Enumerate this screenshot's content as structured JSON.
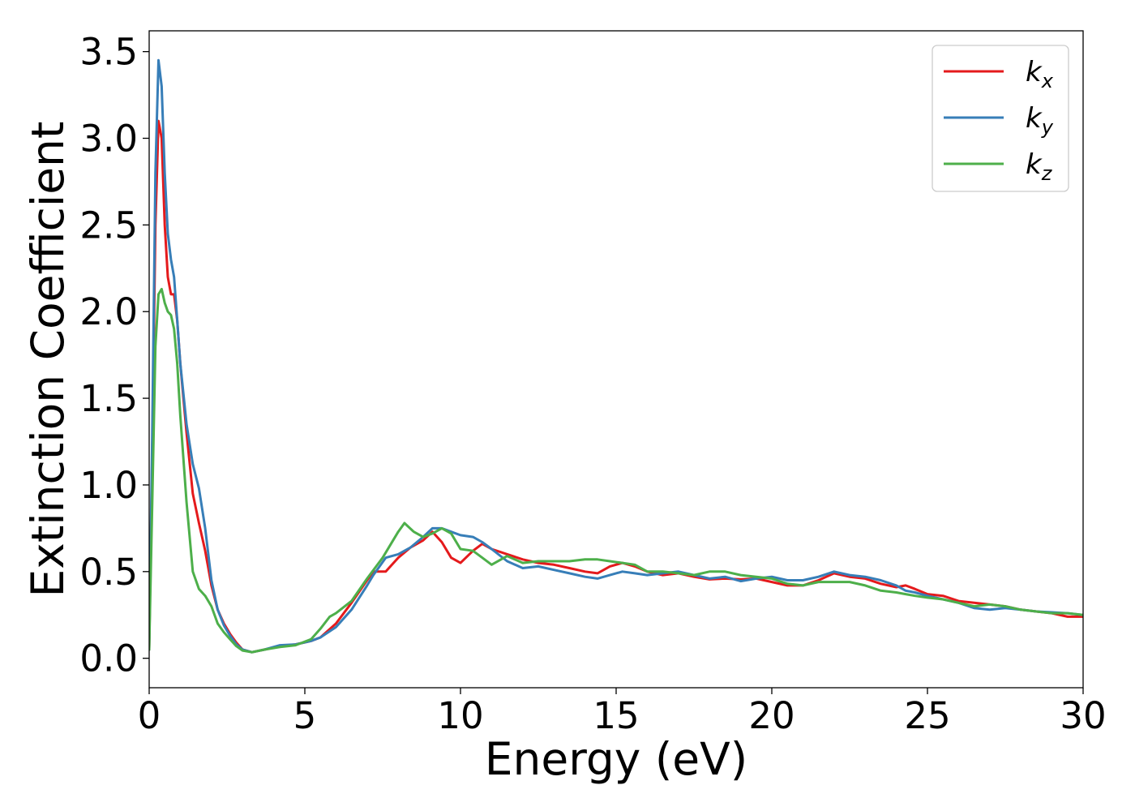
{
  "chart_data": {
    "type": "line",
    "title": "",
    "xlabel": "Energy (eV)",
    "ylabel": "Extinction Coefficient",
    "xlim": [
      0,
      30
    ],
    "ylim": [
      -0.17,
      3.62
    ],
    "xticks": [
      0,
      5,
      10,
      15,
      20,
      25,
      30
    ],
    "xtick_labels": [
      "0",
      "5",
      "10",
      "15",
      "20",
      "25",
      "30"
    ],
    "yticks": [
      0.0,
      0.5,
      1.0,
      1.5,
      2.0,
      2.5,
      3.0,
      3.5
    ],
    "ytick_labels": [
      "0.0",
      "0.5",
      "1.0",
      "1.5",
      "2.0",
      "2.5",
      "3.0",
      "3.5"
    ],
    "grid": false,
    "legend_position": "top-right",
    "series": [
      {
        "name": "k_x",
        "label_main": "k",
        "label_sub": "x",
        "color": "#e41a1c",
        "points": [
          [
            0,
            0.05
          ],
          [
            0.1,
            1.2
          ],
          [
            0.2,
            2.5
          ],
          [
            0.3,
            3.1
          ],
          [
            0.4,
            3.0
          ],
          [
            0.5,
            2.5
          ],
          [
            0.6,
            2.2
          ],
          [
            0.7,
            2.1
          ],
          [
            0.8,
            2.1
          ],
          [
            0.9,
            1.95
          ],
          [
            1.0,
            1.7
          ],
          [
            1.2,
            1.3
          ],
          [
            1.4,
            0.95
          ],
          [
            1.6,
            0.78
          ],
          [
            1.8,
            0.62
          ],
          [
            2.0,
            0.42
          ],
          [
            2.2,
            0.28
          ],
          [
            2.4,
            0.2
          ],
          [
            2.6,
            0.14
          ],
          [
            2.8,
            0.09
          ],
          [
            3.0,
            0.05
          ],
          [
            3.3,
            0.035
          ],
          [
            3.7,
            0.05
          ],
          [
            4.2,
            0.07
          ],
          [
            4.7,
            0.08
          ],
          [
            5.2,
            0.1
          ],
          [
            5.5,
            0.12
          ],
          [
            6.0,
            0.2
          ],
          [
            6.5,
            0.32
          ],
          [
            7.0,
            0.45
          ],
          [
            7.2,
            0.5
          ],
          [
            7.6,
            0.5
          ],
          [
            8.0,
            0.58
          ],
          [
            8.4,
            0.64
          ],
          [
            8.8,
            0.68
          ],
          [
            9.1,
            0.73
          ],
          [
            9.4,
            0.67
          ],
          [
            9.7,
            0.58
          ],
          [
            10.0,
            0.55
          ],
          [
            10.4,
            0.62
          ],
          [
            10.7,
            0.66
          ],
          [
            11.0,
            0.63
          ],
          [
            11.5,
            0.6
          ],
          [
            12.0,
            0.57
          ],
          [
            12.5,
            0.55
          ],
          [
            13.0,
            0.54
          ],
          [
            13.5,
            0.52
          ],
          [
            14.0,
            0.5
          ],
          [
            14.4,
            0.49
          ],
          [
            14.8,
            0.53
          ],
          [
            15.2,
            0.55
          ],
          [
            15.6,
            0.53
          ],
          [
            16.0,
            0.5
          ],
          [
            16.5,
            0.48
          ],
          [
            17.0,
            0.49
          ],
          [
            17.5,
            0.47
          ],
          [
            18.0,
            0.455
          ],
          [
            18.5,
            0.46
          ],
          [
            19.0,
            0.455
          ],
          [
            19.5,
            0.46
          ],
          [
            20.0,
            0.44
          ],
          [
            20.5,
            0.42
          ],
          [
            21.0,
            0.42
          ],
          [
            21.5,
            0.45
          ],
          [
            22.0,
            0.49
          ],
          [
            22.5,
            0.47
          ],
          [
            23.0,
            0.46
          ],
          [
            23.5,
            0.43
          ],
          [
            24.0,
            0.41
          ],
          [
            24.3,
            0.42
          ],
          [
            24.6,
            0.4
          ],
          [
            25.0,
            0.37
          ],
          [
            25.5,
            0.36
          ],
          [
            26.0,
            0.33
          ],
          [
            26.5,
            0.32
          ],
          [
            27.0,
            0.31
          ],
          [
            27.5,
            0.3
          ],
          [
            28.0,
            0.28
          ],
          [
            28.5,
            0.27
          ],
          [
            29.0,
            0.26
          ],
          [
            29.5,
            0.24
          ],
          [
            30.0,
            0.24
          ]
        ]
      },
      {
        "name": "k_y",
        "label_main": "k",
        "label_sub": "y",
        "color": "#377eb8",
        "points": [
          [
            0,
            0.05
          ],
          [
            0.1,
            1.3
          ],
          [
            0.2,
            2.8
          ],
          [
            0.3,
            3.45
          ],
          [
            0.4,
            3.3
          ],
          [
            0.5,
            2.8
          ],
          [
            0.6,
            2.45
          ],
          [
            0.7,
            2.3
          ],
          [
            0.8,
            2.2
          ],
          [
            0.9,
            1.95
          ],
          [
            1.0,
            1.7
          ],
          [
            1.2,
            1.35
          ],
          [
            1.4,
            1.12
          ],
          [
            1.6,
            0.98
          ],
          [
            1.8,
            0.75
          ],
          [
            2.0,
            0.45
          ],
          [
            2.2,
            0.28
          ],
          [
            2.4,
            0.19
          ],
          [
            2.6,
            0.13
          ],
          [
            2.8,
            0.08
          ],
          [
            3.0,
            0.05
          ],
          [
            3.3,
            0.035
          ],
          [
            3.7,
            0.05
          ],
          [
            4.2,
            0.075
          ],
          [
            4.7,
            0.08
          ],
          [
            5.2,
            0.1
          ],
          [
            5.5,
            0.12
          ],
          [
            6.0,
            0.18
          ],
          [
            6.5,
            0.28
          ],
          [
            7.0,
            0.42
          ],
          [
            7.2,
            0.48
          ],
          [
            7.6,
            0.58
          ],
          [
            8.0,
            0.6
          ],
          [
            8.4,
            0.64
          ],
          [
            8.8,
            0.7
          ],
          [
            9.1,
            0.75
          ],
          [
            9.4,
            0.75
          ],
          [
            9.7,
            0.73
          ],
          [
            10.0,
            0.71
          ],
          [
            10.4,
            0.7
          ],
          [
            10.7,
            0.67
          ],
          [
            11.0,
            0.63
          ],
          [
            11.5,
            0.56
          ],
          [
            12.0,
            0.52
          ],
          [
            12.5,
            0.53
          ],
          [
            13.0,
            0.51
          ],
          [
            13.5,
            0.49
          ],
          [
            14.0,
            0.47
          ],
          [
            14.4,
            0.46
          ],
          [
            14.8,
            0.48
          ],
          [
            15.2,
            0.5
          ],
          [
            15.6,
            0.49
          ],
          [
            16.0,
            0.48
          ],
          [
            16.5,
            0.49
          ],
          [
            17.0,
            0.5
          ],
          [
            17.5,
            0.48
          ],
          [
            18.0,
            0.46
          ],
          [
            18.5,
            0.47
          ],
          [
            19.0,
            0.445
          ],
          [
            19.5,
            0.46
          ],
          [
            20.0,
            0.47
          ],
          [
            20.5,
            0.45
          ],
          [
            21.0,
            0.45
          ],
          [
            21.5,
            0.47
          ],
          [
            22.0,
            0.5
          ],
          [
            22.5,
            0.48
          ],
          [
            23.0,
            0.47
          ],
          [
            23.5,
            0.45
          ],
          [
            24.0,
            0.42
          ],
          [
            24.3,
            0.39
          ],
          [
            24.6,
            0.38
          ],
          [
            25.0,
            0.36
          ],
          [
            25.5,
            0.34
          ],
          [
            26.0,
            0.32
          ],
          [
            26.5,
            0.29
          ],
          [
            27.0,
            0.28
          ],
          [
            27.5,
            0.29
          ],
          [
            28.0,
            0.28
          ],
          [
            28.5,
            0.27
          ],
          [
            29.0,
            0.265
          ],
          [
            29.5,
            0.26
          ],
          [
            30.0,
            0.25
          ]
        ]
      },
      {
        "name": "k_z",
        "label_main": "k",
        "label_sub": "z",
        "color": "#4daf4a",
        "points": [
          [
            0,
            0.05
          ],
          [
            0.1,
            0.9
          ],
          [
            0.2,
            1.8
          ],
          [
            0.3,
            2.1
          ],
          [
            0.4,
            2.13
          ],
          [
            0.5,
            2.05
          ],
          [
            0.6,
            2.0
          ],
          [
            0.7,
            1.98
          ],
          [
            0.8,
            1.9
          ],
          [
            0.9,
            1.7
          ],
          [
            1.0,
            1.4
          ],
          [
            1.2,
            0.9
          ],
          [
            1.4,
            0.5
          ],
          [
            1.6,
            0.4
          ],
          [
            1.8,
            0.36
          ],
          [
            2.0,
            0.3
          ],
          [
            2.2,
            0.2
          ],
          [
            2.4,
            0.15
          ],
          [
            2.6,
            0.11
          ],
          [
            2.8,
            0.07
          ],
          [
            3.0,
            0.045
          ],
          [
            3.3,
            0.035
          ],
          [
            3.7,
            0.05
          ],
          [
            4.2,
            0.065
          ],
          [
            4.7,
            0.075
          ],
          [
            5.2,
            0.11
          ],
          [
            5.5,
            0.17
          ],
          [
            5.8,
            0.24
          ],
          [
            6.0,
            0.26
          ],
          [
            6.5,
            0.33
          ],
          [
            7.0,
            0.46
          ],
          [
            7.5,
            0.58
          ],
          [
            8.0,
            0.73
          ],
          [
            8.2,
            0.78
          ],
          [
            8.5,
            0.73
          ],
          [
            8.8,
            0.7
          ],
          [
            9.1,
            0.72
          ],
          [
            9.4,
            0.75
          ],
          [
            9.7,
            0.72
          ],
          [
            10.0,
            0.63
          ],
          [
            10.4,
            0.62
          ],
          [
            10.7,
            0.58
          ],
          [
            11.0,
            0.54
          ],
          [
            11.5,
            0.59
          ],
          [
            12.0,
            0.55
          ],
          [
            12.5,
            0.56
          ],
          [
            13.0,
            0.56
          ],
          [
            13.5,
            0.56
          ],
          [
            14.0,
            0.57
          ],
          [
            14.4,
            0.57
          ],
          [
            14.8,
            0.56
          ],
          [
            15.2,
            0.55
          ],
          [
            15.6,
            0.54
          ],
          [
            16.0,
            0.5
          ],
          [
            16.5,
            0.5
          ],
          [
            17.0,
            0.49
          ],
          [
            17.5,
            0.48
          ],
          [
            18.0,
            0.5
          ],
          [
            18.5,
            0.5
          ],
          [
            19.0,
            0.48
          ],
          [
            19.5,
            0.47
          ],
          [
            20.0,
            0.46
          ],
          [
            20.5,
            0.43
          ],
          [
            21.0,
            0.42
          ],
          [
            21.5,
            0.44
          ],
          [
            22.0,
            0.44
          ],
          [
            22.5,
            0.44
          ],
          [
            23.0,
            0.42
          ],
          [
            23.5,
            0.39
          ],
          [
            24.0,
            0.38
          ],
          [
            24.3,
            0.37
          ],
          [
            24.6,
            0.36
          ],
          [
            25.0,
            0.35
          ],
          [
            25.5,
            0.34
          ],
          [
            26.0,
            0.32
          ],
          [
            26.5,
            0.3
          ],
          [
            27.0,
            0.31
          ],
          [
            27.5,
            0.3
          ],
          [
            28.0,
            0.28
          ],
          [
            28.5,
            0.27
          ],
          [
            29.0,
            0.26
          ],
          [
            29.5,
            0.26
          ],
          [
            30.0,
            0.25
          ]
        ]
      }
    ]
  }
}
